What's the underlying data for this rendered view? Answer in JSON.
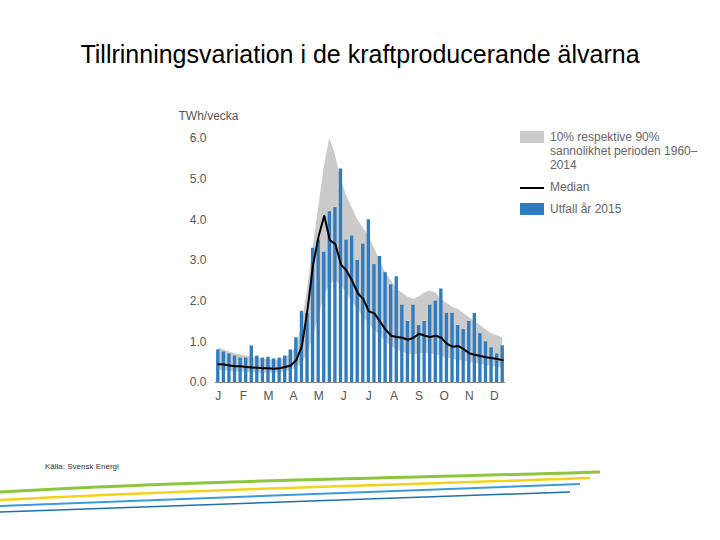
{
  "chart_data": {
    "type": "bar",
    "title": "Tillrinningsvariation i de kraftproducerande älvarna",
    "y_label": "TWh/vecka",
    "source": "Källa: Svensk Energi",
    "x": [
      1,
      2,
      3,
      4,
      5,
      6,
      7,
      8,
      9,
      10,
      11,
      12,
      13,
      14,
      15,
      16,
      17,
      18,
      19,
      20,
      21,
      22,
      23,
      24,
      25,
      26,
      27,
      28,
      29,
      30,
      31,
      32,
      33,
      34,
      35,
      36,
      37,
      38,
      39,
      40,
      41,
      42,
      43,
      44,
      45,
      46,
      47,
      48,
      49,
      50,
      51,
      52
    ],
    "xlim": [
      0.5,
      52.5
    ],
    "xticks": [
      {
        "value": 1,
        "label": "J"
      },
      {
        "value": 5.5,
        "label": "F"
      },
      {
        "value": 10,
        "label": "M"
      },
      {
        "value": 14.5,
        "label": "A"
      },
      {
        "value": 19,
        "label": "M"
      },
      {
        "value": 23.5,
        "label": "J"
      },
      {
        "value": 28,
        "label": "J"
      },
      {
        "value": 32.5,
        "label": "A"
      },
      {
        "value": 37,
        "label": "S"
      },
      {
        "value": 41.5,
        "label": "O"
      },
      {
        "value": 46,
        "label": "N"
      },
      {
        "value": 50.5,
        "label": "D"
      }
    ],
    "ylim": [
      0,
      6
    ],
    "yticks": [
      0,
      1,
      2,
      3,
      4,
      5,
      6
    ],
    "grid": false,
    "series": [
      {
        "name": "10% respektive 90% sannolikhet perioden 1960–2014",
        "type": "area",
        "color": "#cbcbcb",
        "low": [
          0.3,
          0.28,
          0.27,
          0.26,
          0.25,
          0.25,
          0.24,
          0.24,
          0.23,
          0.23,
          0.23,
          0.24,
          0.26,
          0.3,
          0.35,
          0.45,
          0.7,
          1.1,
          1.6,
          2.1,
          2.4,
          2.5,
          2.4,
          2.2,
          2.0,
          1.8,
          1.6,
          1.45,
          1.3,
          1.15,
          1.0,
          0.9,
          0.8,
          0.75,
          0.7,
          0.68,
          0.7,
          0.72,
          0.7,
          0.68,
          0.65,
          0.6,
          0.58,
          0.55,
          0.52,
          0.5,
          0.48,
          0.45,
          0.42,
          0.4,
          0.38,
          0.36
        ],
        "high": [
          0.85,
          0.8,
          0.75,
          0.7,
          0.68,
          0.65,
          0.62,
          0.6,
          0.58,
          0.56,
          0.55,
          0.56,
          0.6,
          0.7,
          0.9,
          1.4,
          2.3,
          3.3,
          4.3,
          5.3,
          6.0,
          5.6,
          5.0,
          4.6,
          4.3,
          4.0,
          3.8,
          3.6,
          3.3,
          3.0,
          2.7,
          2.5,
          2.3,
          2.2,
          2.1,
          2.05,
          2.1,
          2.2,
          2.25,
          2.2,
          2.05,
          1.95,
          1.85,
          1.8,
          1.7,
          1.6,
          1.5,
          1.4,
          1.3,
          1.2,
          1.15,
          1.1
        ]
      },
      {
        "name": "Median",
        "type": "line",
        "color": "#000000",
        "values": [
          0.45,
          0.44,
          0.42,
          0.4,
          0.4,
          0.38,
          0.37,
          0.36,
          0.35,
          0.35,
          0.34,
          0.35,
          0.38,
          0.42,
          0.55,
          0.9,
          1.8,
          2.9,
          3.6,
          4.1,
          3.5,
          3.4,
          2.9,
          2.75,
          2.5,
          2.2,
          2.05,
          1.75,
          1.7,
          1.5,
          1.3,
          1.15,
          1.12,
          1.1,
          1.05,
          1.1,
          1.2,
          1.15,
          1.12,
          1.15,
          1.1,
          0.95,
          0.88,
          0.9,
          0.82,
          0.72,
          0.68,
          0.65,
          0.62,
          0.6,
          0.58,
          0.55
        ]
      },
      {
        "name": "Utfall år 2015",
        "type": "bar",
        "color": "#2f7cc0",
        "values": [
          0.8,
          0.75,
          0.7,
          0.65,
          0.6,
          0.6,
          0.9,
          0.65,
          0.6,
          0.62,
          0.58,
          0.6,
          0.65,
          0.8,
          1.1,
          1.75,
          1.7,
          3.3,
          3.5,
          3.2,
          4.2,
          4.3,
          5.25,
          3.5,
          3.6,
          3.0,
          3.4,
          4.0,
          2.9,
          3.1,
          2.7,
          2.4,
          2.6,
          1.9,
          1.5,
          1.9,
          1.4,
          1.5,
          1.9,
          2.0,
          2.3,
          1.7,
          1.7,
          1.4,
          1.3,
          1.5,
          1.7,
          1.2,
          1.0,
          0.85,
          0.7,
          0.9
        ]
      }
    ]
  }
}
